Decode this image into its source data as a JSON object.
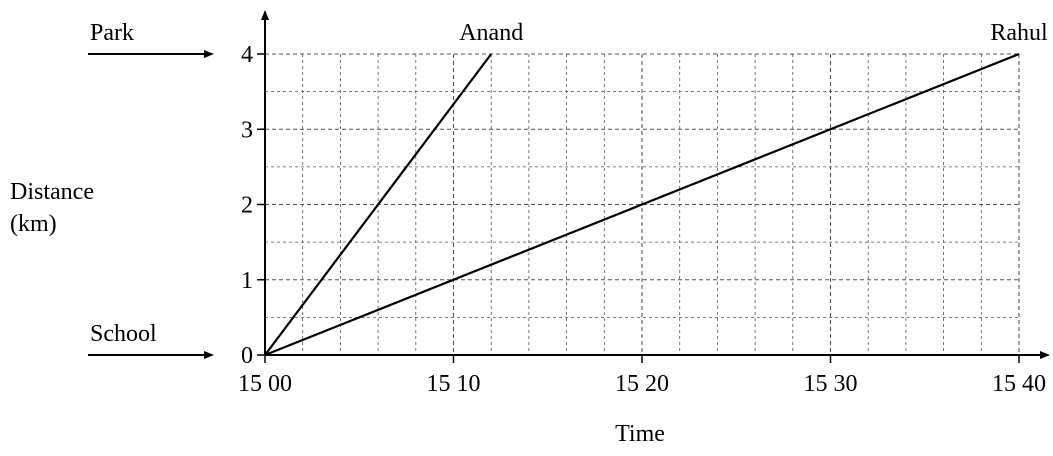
{
  "chart_data": {
    "type": "line",
    "xlabel": "Time",
    "ylabel": [
      "Distance",
      "(km)"
    ],
    "x_ticks": [
      "15 00",
      "15 10",
      "15 20",
      "15 30",
      "15 40"
    ],
    "y_ticks": [
      "0",
      "1",
      "2",
      "3",
      "4"
    ],
    "xlim": [
      0,
      40
    ],
    "ylim": [
      0,
      4
    ],
    "x_unit_note": "minutes after 15 00",
    "grid": true,
    "minor_grid": {
      "x_step": 2,
      "y_step": 0.5
    },
    "series": [
      {
        "name": "Anand",
        "x": [
          0,
          12
        ],
        "y": [
          0,
          4
        ]
      },
      {
        "name": "Rahul",
        "x": [
          0,
          40
        ],
        "y": [
          0,
          4
        ]
      }
    ],
    "annotations": [
      {
        "text": "Park",
        "at_y": 4
      },
      {
        "text": "School",
        "at_y": 0
      }
    ]
  },
  "colors": {
    "axis": "#000000",
    "grid": "#555555",
    "series": "#000000"
  }
}
